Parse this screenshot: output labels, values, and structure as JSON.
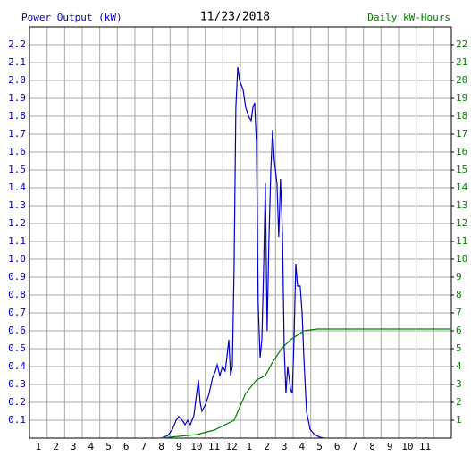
{
  "chart_data": {
    "type": "line",
    "title": "11/23/2018",
    "y_label": "Power Output (kW)",
    "y2_label": "Daily kW-Hours",
    "xlim": [
      0,
      24
    ],
    "xticks": [
      {
        "value": 1,
        "label": "1"
      },
      {
        "value": 2,
        "label": "2"
      },
      {
        "value": 3,
        "label": "3"
      },
      {
        "value": 4,
        "label": "4"
      },
      {
        "value": 5,
        "label": "5"
      },
      {
        "value": 6,
        "label": "6"
      },
      {
        "value": 7,
        "label": "7"
      },
      {
        "value": 8,
        "label": "8"
      },
      {
        "value": 9,
        "label": "9"
      },
      {
        "value": 10,
        "label": "10"
      },
      {
        "value": 11,
        "label": "11"
      },
      {
        "value": 12,
        "label": "12"
      },
      {
        "value": 13,
        "label": "1"
      },
      {
        "value": 14,
        "label": "2"
      },
      {
        "value": 15,
        "label": "3"
      },
      {
        "value": 16,
        "label": "4"
      },
      {
        "value": 17,
        "label": "5"
      },
      {
        "value": 18,
        "label": "6"
      },
      {
        "value": 19,
        "label": "7"
      },
      {
        "value": 20,
        "label": "8"
      },
      {
        "value": 21,
        "label": "9"
      },
      {
        "value": 22,
        "label": "10"
      },
      {
        "value": 23,
        "label": "11"
      }
    ],
    "ylim": [
      0,
      2.3
    ],
    "yticks": [
      0.1,
      0.2,
      0.3,
      0.4,
      0.5,
      0.6,
      0.7,
      0.8,
      0.9,
      {
        "value": 1.0,
        "label": "1.0"
      },
      1.1,
      1.2,
      1.3,
      1.4,
      1.5,
      1.6,
      1.7,
      1.8,
      1.9,
      {
        "value": 2.0,
        "label": "2.0"
      },
      2.1,
      2.2
    ],
    "y2lim": [
      0,
      23
    ],
    "y2ticks": [
      1,
      2,
      3,
      4,
      5,
      6,
      7,
      8,
      9,
      10,
      11,
      12,
      13,
      14,
      15,
      16,
      17,
      18,
      19,
      20,
      21,
      22
    ],
    "grid": true,
    "series": [
      {
        "name": "Power Output (kW)",
        "color": "#0000cc",
        "x": [
          7.47,
          7.88,
          8.14,
          8.34,
          8.49,
          8.69,
          8.85,
          9.0,
          9.15,
          9.35,
          9.51,
          9.61,
          9.71,
          9.81,
          10.02,
          10.22,
          10.42,
          10.58,
          10.68,
          10.83,
          10.98,
          11.13,
          11.23,
          11.34,
          11.44,
          11.54,
          11.64,
          11.74,
          11.85,
          11.95,
          12.15,
          12.3,
          12.46,
          12.61,
          12.71,
          12.81,
          12.91,
          13.01,
          13.12,
          13.22,
          13.32,
          13.42,
          13.52,
          13.62,
          13.73,
          13.83,
          13.93,
          14.08,
          14.18,
          14.28,
          14.39,
          14.49,
          14.59,
          14.69,
          14.85,
          14.95,
          15.05,
          15.15,
          15.25,
          15.4,
          15.51,
          15.61,
          15.76,
          15.96,
          16.22,
          16.52,
          16.73
        ],
        "values": [
          0,
          0.015,
          0.05,
          0.1,
          0.12,
          0.1,
          0.075,
          0.1,
          0.075,
          0.125,
          0.25,
          0.325,
          0.2,
          0.15,
          0.19,
          0.25,
          0.34,
          0.375,
          0.41,
          0.35,
          0.4,
          0.375,
          0.45,
          0.55,
          0.35,
          0.4,
          0.95,
          1.85,
          2.075,
          2.0,
          1.95,
          1.85,
          1.8,
          1.775,
          1.85,
          1.875,
          1.65,
          0.75,
          0.45,
          0.55,
          0.95,
          1.425,
          0.6,
          1.1,
          1.5,
          1.725,
          1.55,
          1.425,
          1.125,
          1.45,
          1.15,
          0.5,
          0.25,
          0.4,
          0.275,
          0.25,
          0.55,
          0.975,
          0.85,
          0.85,
          0.7,
          0.45,
          0.15,
          0.05,
          0.02,
          0.005,
          0
        ]
      },
      {
        "name": "Daily kW-Hours",
        "color": "#008000",
        "axis": "y2",
        "x": [
          7.47,
          8.49,
          9.51,
          10.52,
          11.64,
          12.3,
          12.91,
          13.42,
          13.83,
          14.34,
          14.85,
          15.61,
          16.37,
          17.64,
          24
        ],
        "values": [
          0,
          0.1,
          0.2,
          0.45,
          1.0,
          2.5,
          3.25,
          3.5,
          4.25,
          5.0,
          5.5,
          6.0,
          6.1,
          6.1,
          6.1
        ]
      }
    ]
  }
}
